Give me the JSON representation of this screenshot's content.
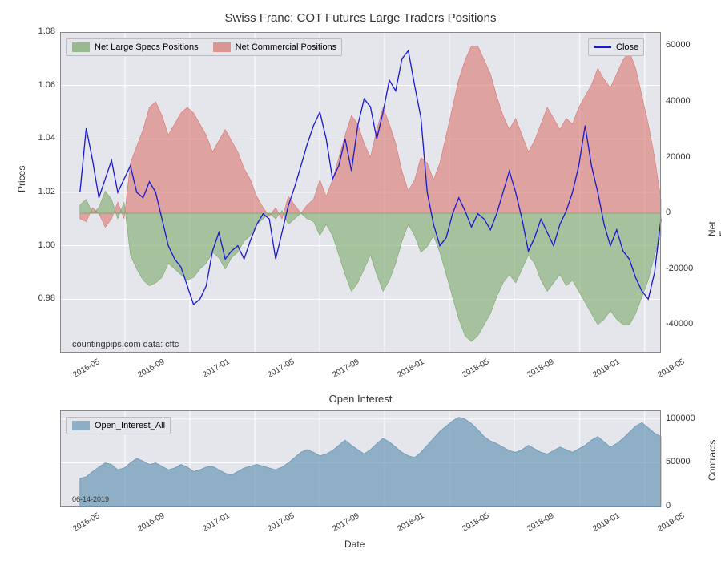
{
  "main_chart": {
    "title": "Swiss Franc: COT Futures Large Traders Positions",
    "title_fontsize": 15,
    "background_color": "#e5e5ec",
    "grid_color": "#ffffff",
    "attribution": "countingpips.com     data: cftc",
    "left_axis": {
      "label": "Prices",
      "min": 0.96,
      "max": 1.08,
      "ticks": [
        0.98,
        1.0,
        1.02,
        1.04,
        1.06,
        1.08
      ]
    },
    "right_axis": {
      "label": "Net Futures Contracts",
      "min": -50000,
      "max": 65000,
      "ticks": [
        -40000,
        -20000,
        0,
        20000,
        40000,
        60000
      ]
    },
    "x_axis": {
      "ticks": [
        "2016-05",
        "2016-09",
        "2017-01",
        "2017-05",
        "2017-09",
        "2018-01",
        "2018-05",
        "2018-09",
        "2019-01",
        "2019-05"
      ],
      "tick_positions": [
        0,
        0.108,
        0.216,
        0.324,
        0.432,
        0.54,
        0.648,
        0.756,
        0.865,
        0.973
      ]
    },
    "series": {
      "specs": {
        "label": "Net Large Specs Positions",
        "color": "#7aa86b",
        "fill_opacity": 0.6,
        "baseline": 0,
        "data": [
          3000,
          5000,
          0,
          2000,
          8000,
          5000,
          -2000,
          4000,
          -15000,
          -20000,
          -24000,
          -26000,
          -25000,
          -23000,
          -18000,
          -20000,
          -22000,
          -24000,
          -23000,
          -20000,
          -18000,
          -14000,
          -16000,
          -20000,
          -16000,
          -14000,
          -10000,
          -8000,
          -4000,
          -2000,
          0,
          -2000,
          1000,
          -4000,
          -2000,
          0,
          -2000,
          -3000,
          -8000,
          -4000,
          -8000,
          -15000,
          -22000,
          -28000,
          -25000,
          -20000,
          -15000,
          -22000,
          -28000,
          -24000,
          -18000,
          -10000,
          -4000,
          -8000,
          -14000,
          -12000,
          -8000,
          -14000,
          -22000,
          -30000,
          -38000,
          -44000,
          -46000,
          -44000,
          -40000,
          -36000,
          -30000,
          -25000,
          -22000,
          -25000,
          -20000,
          -15000,
          -18000,
          -24000,
          -28000,
          -25000,
          -22000,
          -26000,
          -24000,
          -28000,
          -32000,
          -36000,
          -40000,
          -38000,
          -35000,
          -38000,
          -40000,
          -40000,
          -36000,
          -30000,
          -24000,
          -15000,
          -8000
        ]
      },
      "commercial": {
        "label": "Net Commercial Positions",
        "color": "#d87570",
        "fill_opacity": 0.6,
        "baseline": 0,
        "data": [
          -2000,
          -3000,
          2000,
          0,
          -5000,
          -2000,
          4000,
          -2000,
          18000,
          24000,
          30000,
          38000,
          40000,
          35000,
          28000,
          32000,
          36000,
          38000,
          36000,
          32000,
          28000,
          22000,
          26000,
          30000,
          26000,
          22000,
          16000,
          12000,
          6000,
          2000,
          -1000,
          2000,
          -2000,
          6000,
          3000,
          0,
          3000,
          5000,
          12000,
          6000,
          12000,
          20000,
          28000,
          35000,
          32000,
          25000,
          20000,
          30000,
          38000,
          32000,
          25000,
          15000,
          8000,
          12000,
          20000,
          18000,
          12000,
          18000,
          28000,
          38000,
          48000,
          55000,
          60000,
          60000,
          55000,
          50000,
          42000,
          35000,
          30000,
          34000,
          28000,
          22000,
          26000,
          32000,
          38000,
          34000,
          30000,
          34000,
          32000,
          38000,
          42000,
          46000,
          52000,
          48000,
          45000,
          50000,
          55000,
          58000,
          52000,
          42000,
          32000,
          20000,
          5000
        ]
      },
      "close": {
        "label": "Close",
        "color": "#1818d0",
        "line_width": 1.3,
        "data": [
          1.02,
          1.044,
          1.032,
          1.018,
          1.025,
          1.032,
          1.02,
          1.025,
          1.03,
          1.02,
          1.018,
          1.024,
          1.02,
          1.01,
          1.0,
          0.995,
          0.992,
          0.985,
          0.978,
          0.98,
          0.985,
          0.998,
          1.005,
          0.995,
          0.998,
          1.0,
          0.995,
          1.002,
          1.008,
          1.012,
          1.01,
          0.995,
          1.005,
          1.015,
          1.022,
          1.03,
          1.038,
          1.045,
          1.05,
          1.04,
          1.025,
          1.03,
          1.04,
          1.028,
          1.045,
          1.055,
          1.052,
          1.04,
          1.05,
          1.062,
          1.058,
          1.07,
          1.073,
          1.06,
          1.048,
          1.02,
          1.008,
          1.0,
          1.003,
          1.012,
          1.018,
          1.013,
          1.007,
          1.012,
          1.01,
          1.006,
          1.012,
          1.02,
          1.028,
          1.02,
          1.01,
          0.998,
          1.003,
          1.01,
          1.005,
          1.0,
          1.008,
          1.013,
          1.02,
          1.03,
          1.045,
          1.03,
          1.02,
          1.008,
          1.0,
          1.006,
          0.998,
          0.995,
          0.988,
          0.983,
          0.98,
          0.99,
          1.01
        ]
      }
    },
    "legend_left": {
      "items": [
        {
          "label": "Net Large Specs Positions",
          "color": "#7aa86b",
          "type": "swatch"
        },
        {
          "label": "Net Commercial Positions",
          "color": "#d87570",
          "type": "swatch"
        }
      ]
    },
    "legend_right": {
      "items": [
        {
          "label": "Close",
          "color": "#1818d0",
          "type": "line"
        }
      ]
    }
  },
  "lower_chart": {
    "title": "Open Interest",
    "title_fontsize": 13,
    "background_color": "#e5e5ec",
    "grid_color": "#ffffff",
    "date_note": "06-14-2019",
    "left_axis": {
      "label": "Date"
    },
    "right_axis": {
      "label": "Contracts",
      "min": 0,
      "max": 110000,
      "ticks": [
        0,
        50000,
        100000
      ]
    },
    "series": {
      "open_interest": {
        "label": "Open_Interest_All",
        "color": "#6a98b5",
        "fill_opacity": 0.7,
        "data": [
          32000,
          34000,
          40000,
          45000,
          50000,
          48000,
          42000,
          44000,
          50000,
          55000,
          52000,
          48000,
          50000,
          46000,
          42000,
          44000,
          48000,
          45000,
          40000,
          42000,
          45000,
          46000,
          42000,
          38000,
          36000,
          40000,
          44000,
          46000,
          48000,
          46000,
          44000,
          42000,
          45000,
          50000,
          56000,
          62000,
          65000,
          62000,
          58000,
          60000,
          64000,
          70000,
          76000,
          70000,
          65000,
          60000,
          65000,
          72000,
          78000,
          74000,
          68000,
          62000,
          58000,
          56000,
          62000,
          70000,
          78000,
          86000,
          92000,
          98000,
          102000,
          100000,
          95000,
          88000,
          80000,
          75000,
          72000,
          68000,
          64000,
          62000,
          65000,
          70000,
          66000,
          62000,
          60000,
          64000,
          68000,
          65000,
          62000,
          66000,
          70000,
          76000,
          80000,
          74000,
          68000,
          72000,
          78000,
          85000,
          92000,
          96000,
          90000,
          84000,
          80000
        ]
      }
    },
    "legend": {
      "items": [
        {
          "label": "Open_Interest_All",
          "color": "#6a98b5",
          "type": "swatch"
        }
      ]
    }
  }
}
